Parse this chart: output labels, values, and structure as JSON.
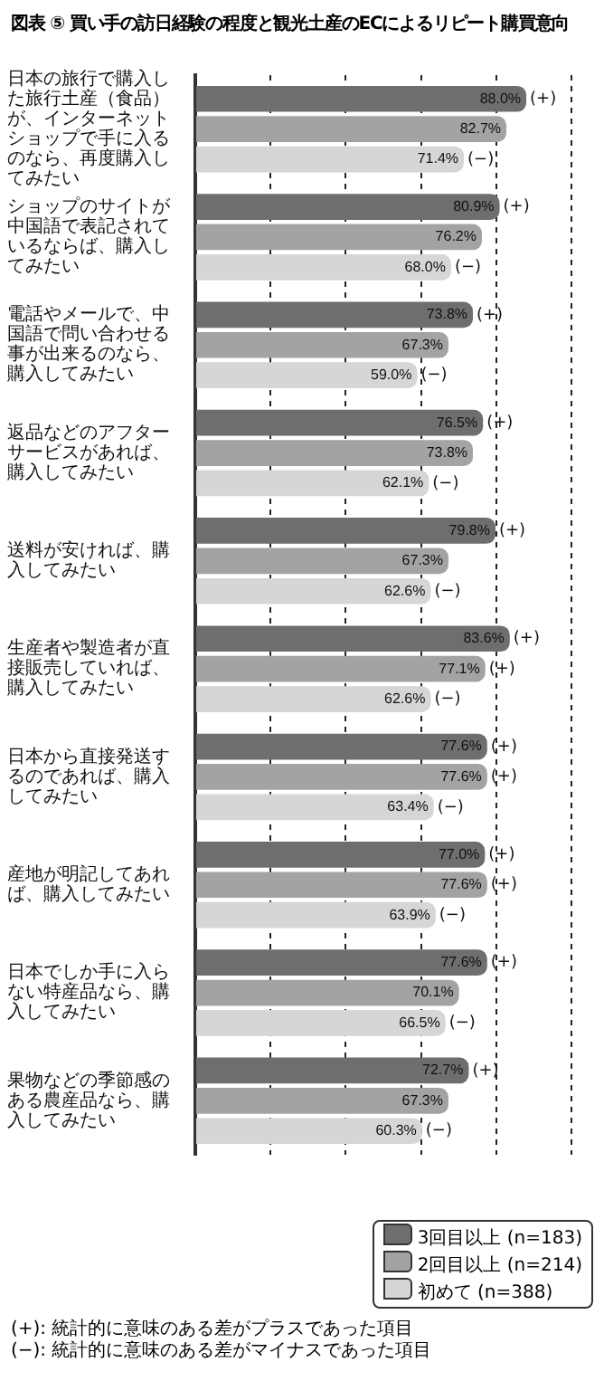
{
  "chart_data": {
    "type": "bar",
    "orientation": "horizontal",
    "title": "図表 ⑤ 買い手の訪日経験の程度と観光土産のECによるリピート購買意向",
    "categories": [
      "日本の旅行で購入した旅行土産（食品）が、インターネットショップで手に入るのなら、再度購入してみたい",
      "ショップのサイトが中国語で表記されているならば、購入してみたい",
      "電話やメールで、中国語で問い合わせる事が出来るのなら、購入してみたい",
      "返品などのアフターサービスがあれば、購入してみたい",
      "送料が安ければ、購入してみたい",
      "生産者や製造者が直接販売していれば、購入してみたい",
      "日本から直接発送するのであれば、購入してみたい",
      "産地が明記してあれば、購入してみたい",
      "日本でしか手に入らない特産品なら、購入してみたい",
      "果物などの季節感のある農産品なら、購入してみたい"
    ],
    "series": [
      {
        "name": "3回目以上 (n=183)",
        "color": "#6e6e6e",
        "values": [
          88.0,
          80.9,
          73.8,
          76.5,
          79.8,
          83.6,
          77.6,
          77.0,
          77.6,
          72.7
        ],
        "value_labels": [
          "88.0% (+)",
          "80.9% (+)",
          "73.8% (+)",
          "76.5% (+)",
          "79.8% (+)",
          "83.6% (+)",
          "77.6% (+)",
          "77.0% (+)",
          "77.6% (+)",
          "72.7% (+)"
        ]
      },
      {
        "name": "2回目以上 (n=214)",
        "color": "#a3a3a3",
        "values": [
          82.7,
          76.2,
          67.3,
          73.8,
          67.3,
          77.1,
          77.6,
          77.6,
          70.1,
          67.3
        ],
        "value_labels": [
          "82.7%",
          "76.2%",
          "67.3%",
          "73.8%",
          "67.3%",
          "77.1% (+)",
          "77.6% (+)",
          "77.6% (+)",
          "70.1%",
          "67.3%"
        ]
      },
      {
        "name": "初めて (n=388)",
        "color": "#d6d6d6",
        "values": [
          71.4,
          68.0,
          59.0,
          62.1,
          62.6,
          62.6,
          63.4,
          63.9,
          66.5,
          60.3
        ],
        "value_labels": [
          "71.4% (−)",
          "68.0% (−)",
          "59.0% (−)",
          "62.1% (−)",
          "62.6% (−)",
          "62.6% (−)",
          "63.4% (−)",
          "63.9% (−)",
          "66.5% (−)",
          "60.3% (−)"
        ]
      }
    ],
    "tick_labels": "y",
    "grid": "x",
    "legend": "bottom right",
    "annotations": [
      "(+): 統計的に意味のある差がプラスであった項目",
      "(−): 統計的に意味のある差がマイナスであった項目"
    ]
  }
}
